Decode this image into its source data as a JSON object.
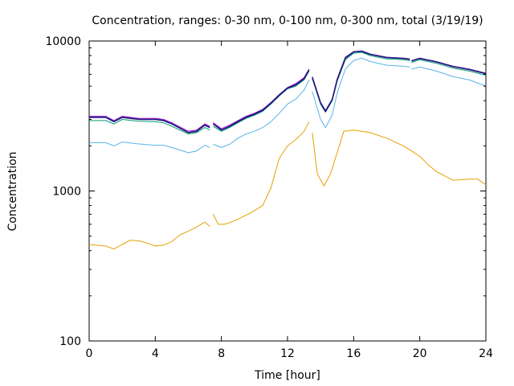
{
  "chart_data": {
    "type": "line",
    "title": "Concentration, ranges: 0-30 nm, 0-100 nm, 0-300 nm, total (3/19/19)",
    "xlabel": "Time [hour]",
    "ylabel": "Concentration",
    "xlim": [
      0,
      24
    ],
    "ylim": [
      100,
      10000
    ],
    "yscale": "log",
    "grid": false,
    "legend": "none",
    "x_ticks": [
      0,
      4,
      8,
      12,
      16,
      20,
      24
    ],
    "x_tick_labels": [
      "0",
      "4",
      "8",
      "12",
      "16",
      "20",
      "24"
    ],
    "y_ticks": [
      100,
      1000,
      10000
    ],
    "y_tick_labels": [
      "100",
      "1000",
      "10000"
    ],
    "series": [
      {
        "color": "#e6a000",
        "segments": [
          [
            [
              0,
              440
            ],
            [
              1,
              430
            ],
            [
              1.5,
              410
            ],
            [
              2,
              440
            ],
            [
              2.5,
              470
            ],
            [
              3,
              465
            ],
            [
              3.5,
              450
            ],
            [
              4,
              430
            ],
            [
              4.5,
              435
            ],
            [
              5,
              460
            ],
            [
              5.5,
              510
            ],
            [
              6,
              540
            ],
            [
              6.5,
              575
            ],
            [
              7,
              620
            ],
            [
              7.3,
              580
            ]
          ],
          [
            [
              7.5,
              700
            ],
            [
              7.8,
              600
            ],
            [
              8.2,
              600
            ],
            [
              8.6,
              620
            ],
            [
              9,
              650
            ],
            [
              9.5,
              690
            ],
            [
              10,
              740
            ],
            [
              10.5,
              800
            ],
            [
              11,
              1050
            ],
            [
              11.5,
              1650
            ],
            [
              12,
              2000
            ],
            [
              12.5,
              2200
            ],
            [
              13,
              2500
            ],
            [
              13.3,
              2900
            ]
          ],
          [
            [
              13.5,
              2450
            ],
            [
              13.8,
              1300
            ],
            [
              14.2,
              1080
            ],
            [
              14.6,
              1300
            ],
            [
              15,
              1800
            ],
            [
              15.4,
              2500
            ],
            [
              16,
              2550
            ],
            [
              17,
              2450
            ],
            [
              18,
              2250
            ],
            [
              19,
              2000
            ],
            [
              19.5,
              1850
            ],
            [
              20,
              1700
            ],
            [
              20.5,
              1500
            ],
            [
              21,
              1350
            ],
            [
              22,
              1180
            ],
            [
              23,
              1200
            ],
            [
              23.5,
              1200
            ],
            [
              24,
              1100
            ]
          ]
        ]
      },
      {
        "color": "#56b4e9",
        "segments": [
          [
            [
              0,
              2100
            ],
            [
              1,
              2100
            ],
            [
              1.5,
              2000
            ],
            [
              2,
              2120
            ],
            [
              3,
              2060
            ],
            [
              4,
              2020
            ],
            [
              4.5,
              2020
            ],
            [
              5,
              1950
            ],
            [
              6,
              1800
            ],
            [
              6.5,
              1850
            ],
            [
              7,
              2020
            ],
            [
              7.3,
              1950
            ]
          ],
          [
            [
              7.5,
              2050
            ],
            [
              8,
              1950
            ],
            [
              8.5,
              2050
            ],
            [
              9,
              2250
            ],
            [
              9.5,
              2400
            ],
            [
              10,
              2500
            ],
            [
              10.5,
              2650
            ],
            [
              11,
              2900
            ],
            [
              11.5,
              3300
            ],
            [
              12,
              3800
            ],
            [
              12.5,
              4100
            ],
            [
              13,
              4700
            ],
            [
              13.3,
              5500
            ]
          ],
          [
            [
              13.5,
              4600
            ],
            [
              14,
              3000
            ],
            [
              14.3,
              2650
            ],
            [
              14.7,
              3200
            ],
            [
              15,
              4500
            ],
            [
              15.5,
              6500
            ],
            [
              16,
              7400
            ],
            [
              16.5,
              7700
            ],
            [
              17,
              7300
            ],
            [
              18,
              6900
            ],
            [
              19,
              6800
            ],
            [
              19.4,
              6700
            ]
          ],
          [
            [
              19.5,
              6500
            ],
            [
              20,
              6700
            ],
            [
              21,
              6300
            ],
            [
              22,
              5800
            ],
            [
              23,
              5500
            ],
            [
              24,
              5000
            ]
          ]
        ]
      },
      {
        "color": "#009e73",
        "segments": [
          [
            [
              0,
              2950
            ],
            [
              1,
              2950
            ],
            [
              1.5,
              2800
            ],
            [
              2,
              3000
            ],
            [
              3,
              2920
            ],
            [
              4,
              2900
            ],
            [
              4.5,
              2850
            ],
            [
              5,
              2700
            ],
            [
              6,
              2400
            ],
            [
              6.5,
              2450
            ],
            [
              7,
              2650
            ],
            [
              7.3,
              2550
            ]
          ],
          [
            [
              7.5,
              2700
            ],
            [
              8,
              2500
            ],
            [
              8.5,
              2650
            ],
            [
              9,
              2850
            ],
            [
              9.5,
              3050
            ],
            [
              10,
              3200
            ],
            [
              10.5,
              3400
            ],
            [
              11,
              3800
            ],
            [
              11.5,
              4300
            ],
            [
              12,
              4800
            ],
            [
              12.5,
              5000
            ],
            [
              13,
              5500
            ],
            [
              13.3,
              6300
            ]
          ],
          [
            [
              13.5,
              5600
            ],
            [
              14,
              3800
            ],
            [
              14.3,
              3350
            ],
            [
              14.7,
              4000
            ],
            [
              15,
              5400
            ],
            [
              15.5,
              7500
            ],
            [
              16,
              8300
            ],
            [
              16.5,
              8400
            ],
            [
              17,
              8000
            ],
            [
              18,
              7600
            ],
            [
              19,
              7500
            ],
            [
              19.4,
              7400
            ]
          ],
          [
            [
              19.5,
              7200
            ],
            [
              20,
              7500
            ],
            [
              21,
              7100
            ],
            [
              22,
              6600
            ],
            [
              23,
              6300
            ],
            [
              24,
              5900
            ]
          ]
        ]
      },
      {
        "color": "#9400d3",
        "segments": [
          [
            [
              0,
              3150
            ],
            [
              1,
              3150
            ],
            [
              1.5,
              2950
            ],
            [
              2,
              3150
            ],
            [
              3,
              3050
            ],
            [
              4,
              3050
            ],
            [
              4.5,
              3000
            ],
            [
              5,
              2850
            ],
            [
              6,
              2500
            ],
            [
              6.5,
              2550
            ],
            [
              7,
              2800
            ],
            [
              7.3,
              2700
            ]
          ],
          [
            [
              7.5,
              2850
            ],
            [
              8,
              2600
            ],
            [
              8.5,
              2750
            ],
            [
              9,
              2950
            ],
            [
              9.5,
              3150
            ],
            [
              10,
              3300
            ],
            [
              10.5,
              3500
            ],
            [
              11,
              3900
            ],
            [
              11.5,
              4400
            ],
            [
              12,
              4900
            ],
            [
              12.5,
              5200
            ],
            [
              13,
              5700
            ],
            [
              13.3,
              6500
            ]
          ],
          [
            [
              13.5,
              5800
            ],
            [
              14,
              3900
            ],
            [
              14.3,
              3450
            ],
            [
              14.7,
              4100
            ],
            [
              15,
              5600
            ],
            [
              15.5,
              7800
            ],
            [
              16,
              8500
            ],
            [
              16.5,
              8600
            ],
            [
              17,
              8200
            ],
            [
              18,
              7800
            ],
            [
              19,
              7700
            ],
            [
              19.4,
              7600
            ]
          ],
          [
            [
              19.5,
              7400
            ],
            [
              20,
              7700
            ],
            [
              21,
              7300
            ],
            [
              22,
              6800
            ],
            [
              23,
              6500
            ],
            [
              24,
              6100
            ]
          ]
        ]
      },
      {
        "color": "#1b1b7a",
        "segments": [
          [
            [
              0,
              3100
            ],
            [
              1,
              3100
            ],
            [
              1.5,
              2900
            ],
            [
              2,
              3100
            ],
            [
              3,
              3000
            ],
            [
              4,
              3000
            ],
            [
              4.5,
              2950
            ],
            [
              5,
              2800
            ],
            [
              6,
              2450
            ],
            [
              6.5,
              2500
            ],
            [
              7,
              2750
            ],
            [
              7.3,
              2650
            ]
          ],
          [
            [
              7.5,
              2800
            ],
            [
              8,
              2550
            ],
            [
              8.5,
              2700
            ],
            [
              9,
              2900
            ],
            [
              9.5,
              3100
            ],
            [
              10,
              3250
            ],
            [
              10.5,
              3450
            ],
            [
              11,
              3850
            ],
            [
              11.5,
              4350
            ],
            [
              12,
              4850
            ],
            [
              12.5,
              5100
            ],
            [
              13,
              5600
            ],
            [
              13.3,
              6400
            ]
          ],
          [
            [
              13.5,
              5700
            ],
            [
              14,
              3850
            ],
            [
              14.3,
              3400
            ],
            [
              14.7,
              4050
            ],
            [
              15,
              5500
            ],
            [
              15.5,
              7700
            ],
            [
              16,
              8450
            ],
            [
              16.5,
              8550
            ],
            [
              17,
              8150
            ],
            [
              18,
              7750
            ],
            [
              19,
              7650
            ],
            [
              19.4,
              7550
            ]
          ],
          [
            [
              19.5,
              7350
            ],
            [
              20,
              7650
            ],
            [
              21,
              7250
            ],
            [
              22,
              6750
            ],
            [
              23,
              6450
            ],
            [
              24,
              6050
            ]
          ]
        ]
      }
    ]
  }
}
